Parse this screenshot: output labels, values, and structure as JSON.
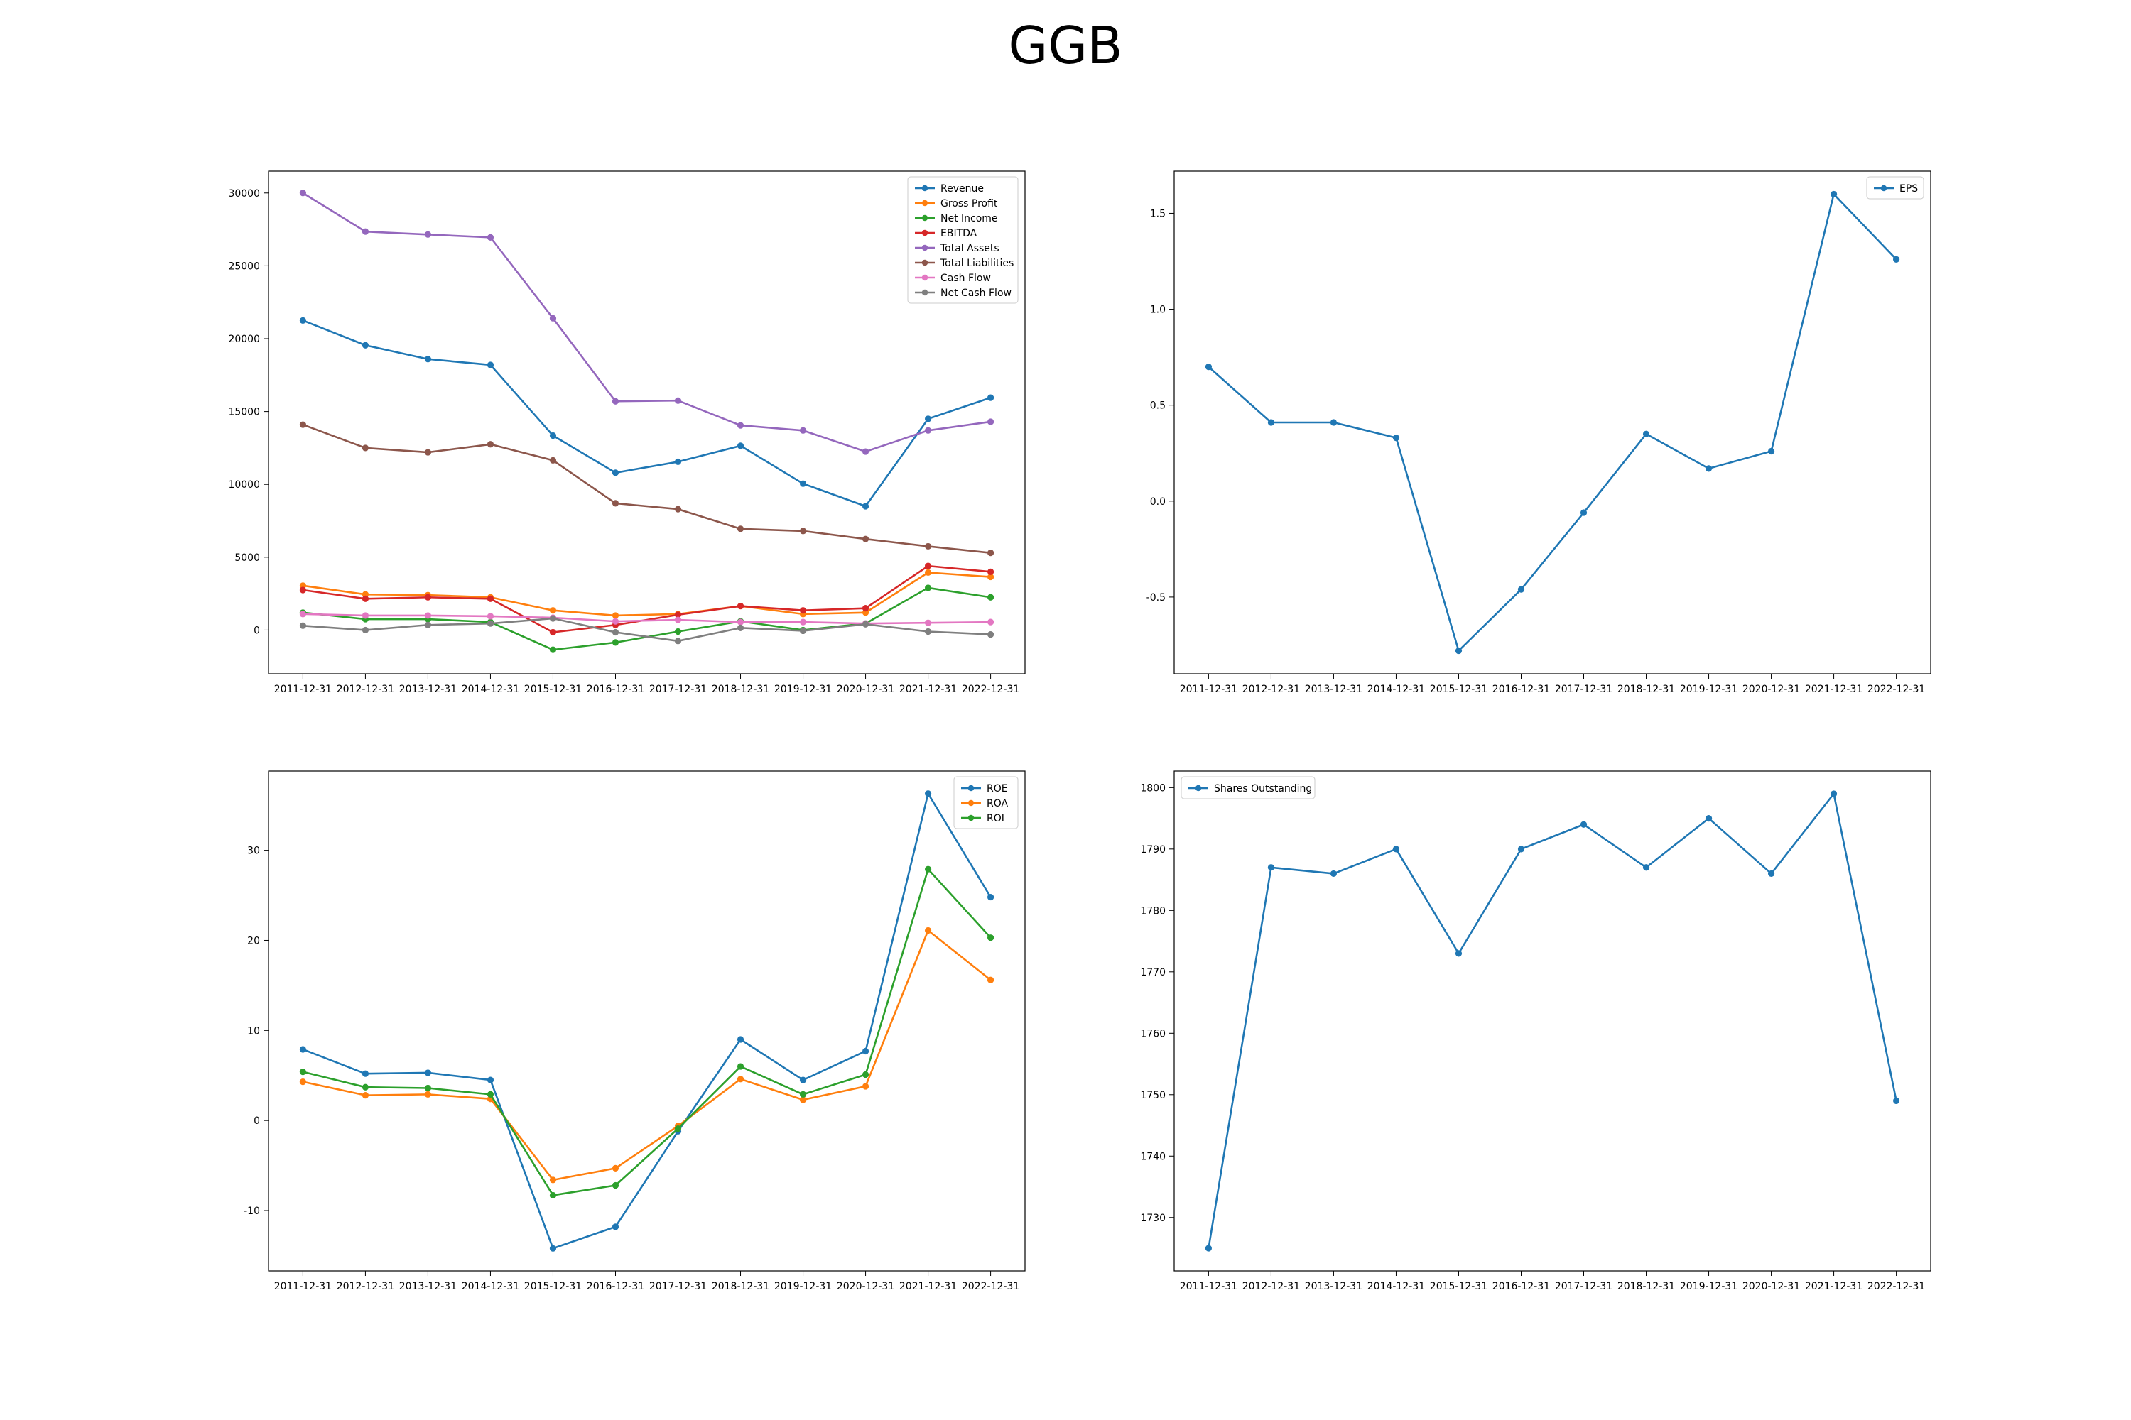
{
  "figure": {
    "title": "GGB"
  },
  "chart_data": [
    {
      "type": "line",
      "title": "",
      "xlabel": "",
      "ylabel": "",
      "categories": [
        "2011-12-31",
        "2012-12-31",
        "2013-12-31",
        "2014-12-31",
        "2015-12-31",
        "2016-12-31",
        "2017-12-31",
        "2018-12-31",
        "2019-12-31",
        "2020-12-31",
        "2021-12-31",
        "2022-12-31"
      ],
      "ylim": [
        -3000,
        31500
      ],
      "yticks": [
        0,
        5000,
        10000,
        15000,
        20000,
        25000,
        30000
      ],
      "legend": "top-right",
      "grid": false,
      "series": [
        {
          "name": "Revenue",
          "color": "#1f77b4",
          "values": [
            21250,
            19550,
            18600,
            18200,
            13350,
            10800,
            11550,
            12650,
            10050,
            8500,
            14500,
            15950
          ]
        },
        {
          "name": "Gross Profit",
          "color": "#ff7f0e",
          "values": [
            3050,
            2450,
            2400,
            2250,
            1350,
            1000,
            1100,
            1650,
            1100,
            1200,
            3950,
            3650
          ]
        },
        {
          "name": "Net Income",
          "color": "#2ca02c",
          "values": [
            1200,
            750,
            750,
            550,
            -1350,
            -850,
            -100,
            600,
            0,
            450,
            2900,
            2250
          ]
        },
        {
          "name": "EBITDA",
          "color": "#d62728",
          "values": [
            2750,
            2150,
            2250,
            2150,
            -150,
            350,
            1050,
            1650,
            1350,
            1500,
            4400,
            4000
          ]
        },
        {
          "name": "Total Assets",
          "color": "#9467bd",
          "values": [
            30000,
            27350,
            27150,
            26950,
            21400,
            15700,
            15750,
            14050,
            13700,
            12250,
            13700,
            14300
          ]
        },
        {
          "name": "Total Liabilities",
          "color": "#8c564b",
          "values": [
            14100,
            12500,
            12200,
            12750,
            11650,
            8700,
            8300,
            6950,
            6800,
            6250,
            5750,
            5300
          ]
        },
        {
          "name": "Cash Flow",
          "color": "#e377c2",
          "values": [
            1100,
            1000,
            1000,
            950,
            850,
            600,
            700,
            550,
            550,
            450,
            500,
            550
          ]
        },
        {
          "name": "Net Cash Flow",
          "color": "#7f7f7f",
          "values": [
            300,
            0,
            350,
            450,
            800,
            -150,
            -750,
            150,
            -50,
            400,
            -100,
            -300
          ]
        }
      ]
    },
    {
      "type": "line",
      "title": "",
      "xlabel": "",
      "ylabel": "",
      "categories": [
        "2011-12-31",
        "2012-12-31",
        "2013-12-31",
        "2014-12-31",
        "2015-12-31",
        "2016-12-31",
        "2017-12-31",
        "2018-12-31",
        "2019-12-31",
        "2020-12-31",
        "2021-12-31",
        "2022-12-31"
      ],
      "ylim": [
        -0.9,
        1.72
      ],
      "yticks": [
        -0.5,
        0.0,
        0.5,
        1.0,
        1.5
      ],
      "tick_decimals": 1,
      "legend": "top-right",
      "grid": false,
      "series": [
        {
          "name": "EPS",
          "color": "#1f77b4",
          "values": [
            0.7,
            0.41,
            0.41,
            0.33,
            -0.78,
            -0.46,
            -0.06,
            0.35,
            0.17,
            0.26,
            1.6,
            1.26
          ]
        }
      ]
    },
    {
      "type": "line",
      "title": "",
      "xlabel": "",
      "ylabel": "",
      "categories": [
        "2011-12-31",
        "2012-12-31",
        "2013-12-31",
        "2014-12-31",
        "2015-12-31",
        "2016-12-31",
        "2017-12-31",
        "2018-12-31",
        "2019-12-31",
        "2020-12-31",
        "2021-12-31",
        "2022-12-31"
      ],
      "ylim": [
        -16.7,
        38.8
      ],
      "yticks": [
        -10,
        0,
        10,
        20,
        30
      ],
      "legend": "top-right",
      "grid": false,
      "series": [
        {
          "name": "ROE",
          "color": "#1f77b4",
          "values": [
            7.9,
            5.2,
            5.3,
            4.5,
            -14.2,
            -11.8,
            -1.2,
            9.0,
            4.5,
            7.7,
            36.3,
            24.8
          ]
        },
        {
          "name": "ROA",
          "color": "#ff7f0e",
          "values": [
            4.3,
            2.8,
            2.9,
            2.4,
            -6.6,
            -5.3,
            -0.6,
            4.6,
            2.3,
            3.8,
            21.1,
            15.6
          ]
        },
        {
          "name": "ROI",
          "color": "#2ca02c",
          "values": [
            5.4,
            3.7,
            3.6,
            2.9,
            -8.3,
            -7.2,
            -0.9,
            6.0,
            2.9,
            5.1,
            27.9,
            20.3
          ]
        }
      ]
    },
    {
      "type": "line",
      "title": "",
      "xlabel": "",
      "ylabel": "",
      "categories": [
        "2011-12-31",
        "2012-12-31",
        "2013-12-31",
        "2014-12-31",
        "2015-12-31",
        "2016-12-31",
        "2017-12-31",
        "2018-12-31",
        "2019-12-31",
        "2020-12-31",
        "2021-12-31",
        "2022-12-31"
      ],
      "ylim": [
        1721.3,
        1802.7
      ],
      "yticks": [
        1730,
        1740,
        1750,
        1760,
        1770,
        1780,
        1790,
        1800
      ],
      "legend": "top-left",
      "grid": false,
      "series": [
        {
          "name": "Shares Outstanding",
          "color": "#1f77b4",
          "values": [
            1725,
            1787,
            1786,
            1790,
            1773,
            1790,
            1794,
            1787,
            1795,
            1786,
            1799,
            1749
          ]
        }
      ]
    }
  ]
}
